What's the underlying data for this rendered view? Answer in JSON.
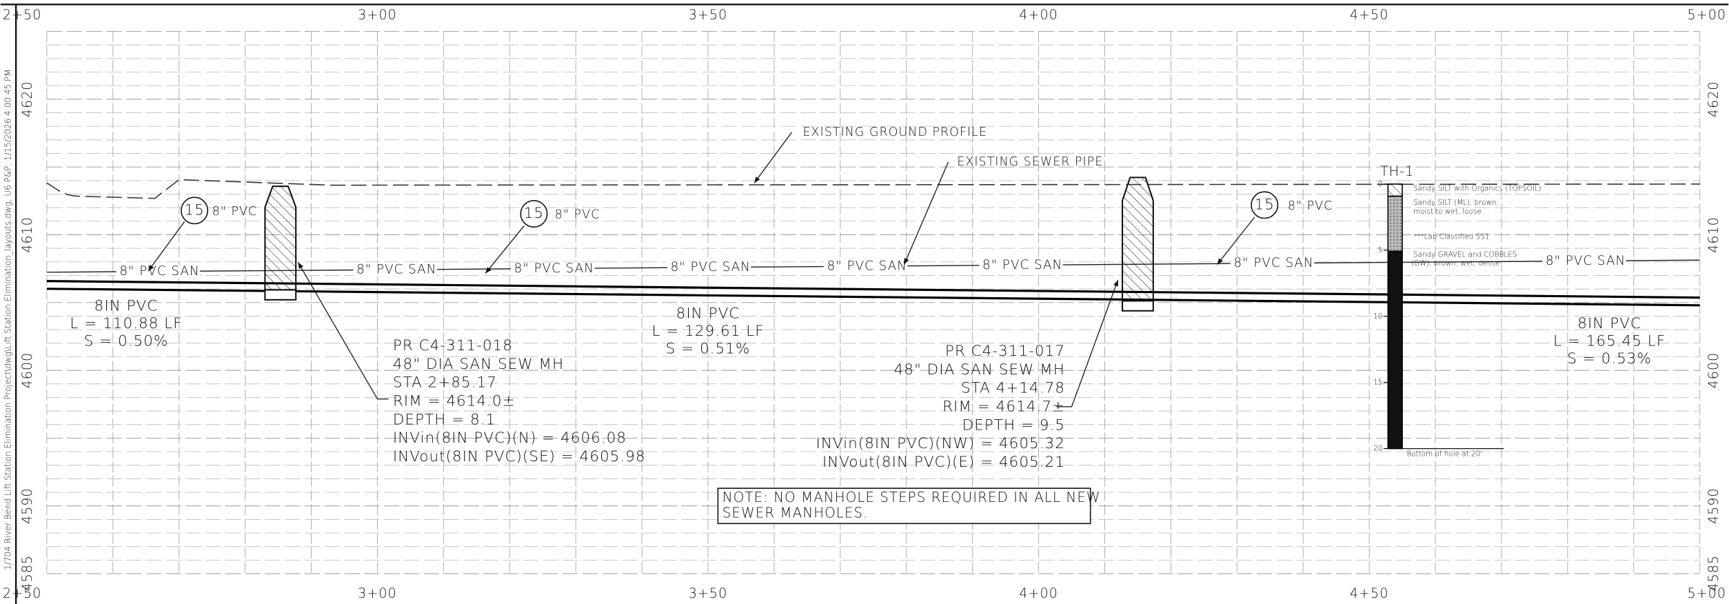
{
  "header": {
    "side_text": "1/704 River Bend Lift Station Elimination Project\\dwg\\Lift Station Elimination_layouts.dwg, U6 P&P, 1/15/2026 4:00:45 PM"
  },
  "axes": {
    "stations": [
      "2+50",
      "3+00",
      "3+50",
      "4+00",
      "4+50",
      "5+00"
    ],
    "elevations": [
      "4620",
      "4610",
      "4600",
      "4590",
      "4585"
    ]
  },
  "labels": {
    "ground_profile": "EXISTING GROUND PROFILE",
    "sewer_pipe": "EXISTING SEWER PIPE",
    "san_labels": [
      "8\" PVC SAN",
      "8\" PVC SAN",
      "8\" PVC SAN",
      "8\" PVC SAN",
      "8\" PVC SAN",
      "8\" PVC SAN",
      "8\" PVC SAN",
      "8\" PVC SAN"
    ]
  },
  "callouts": [
    {
      "number": "15",
      "text": "8\" PVC"
    },
    {
      "number": "15",
      "text": "8\" PVC"
    },
    {
      "number": "15",
      "text": "8\" PVC"
    }
  ],
  "pipes": [
    {
      "material": "8IN PVC",
      "length": "L = 110.88 LF",
      "slope": "S = 0.50%"
    },
    {
      "material": "8IN PVC",
      "length": "L = 129.61 LF",
      "slope": "S = 0.51%"
    },
    {
      "material": "8IN PVC",
      "length": "L = 165.45 LF",
      "slope": "S = 0.53%"
    }
  ],
  "manholes": [
    {
      "lines": [
        "PR C4-311-018",
        "48\" DIA SAN SEW MH",
        "STA 2+85.17",
        "RIM = 4614.0±",
        "DEPTH = 8.1",
        "INVin(8IN PVC)(N) = 4606.08",
        "INVout(8IN PVC)(SE) = 4605.98"
      ]
    },
    {
      "lines": [
        "PR C4-311-017",
        "48\" DIA SAN SEW MH",
        "STA 4+14.78",
        "RIM = 4614.7±",
        "DEPTH = 9.5",
        "INVin(8IN PVC)(NW) = 4605.32",
        "INVout(8IN PVC)(E) = 4605.21"
      ]
    }
  ],
  "note": [
    "NOTE: NO MANHOLE STEPS REQUIRED IN ALL NEW",
    "SEWER MANHOLES."
  ],
  "test_hole": {
    "name": "TH-1",
    "depths": [
      "0",
      "5",
      "10",
      "15",
      "20"
    ],
    "layers": [
      "Sandy SILT with Organics (TOPSOIL)",
      "Sandy SILT (ML), brown,",
      "moist to wet, loose",
      "***Lab Classified SS1",
      "Sandy GRAVEL and COBBLES",
      "(GW), brown, wet, dense"
    ],
    "bottom": "Bottom of hole at 20'"
  }
}
